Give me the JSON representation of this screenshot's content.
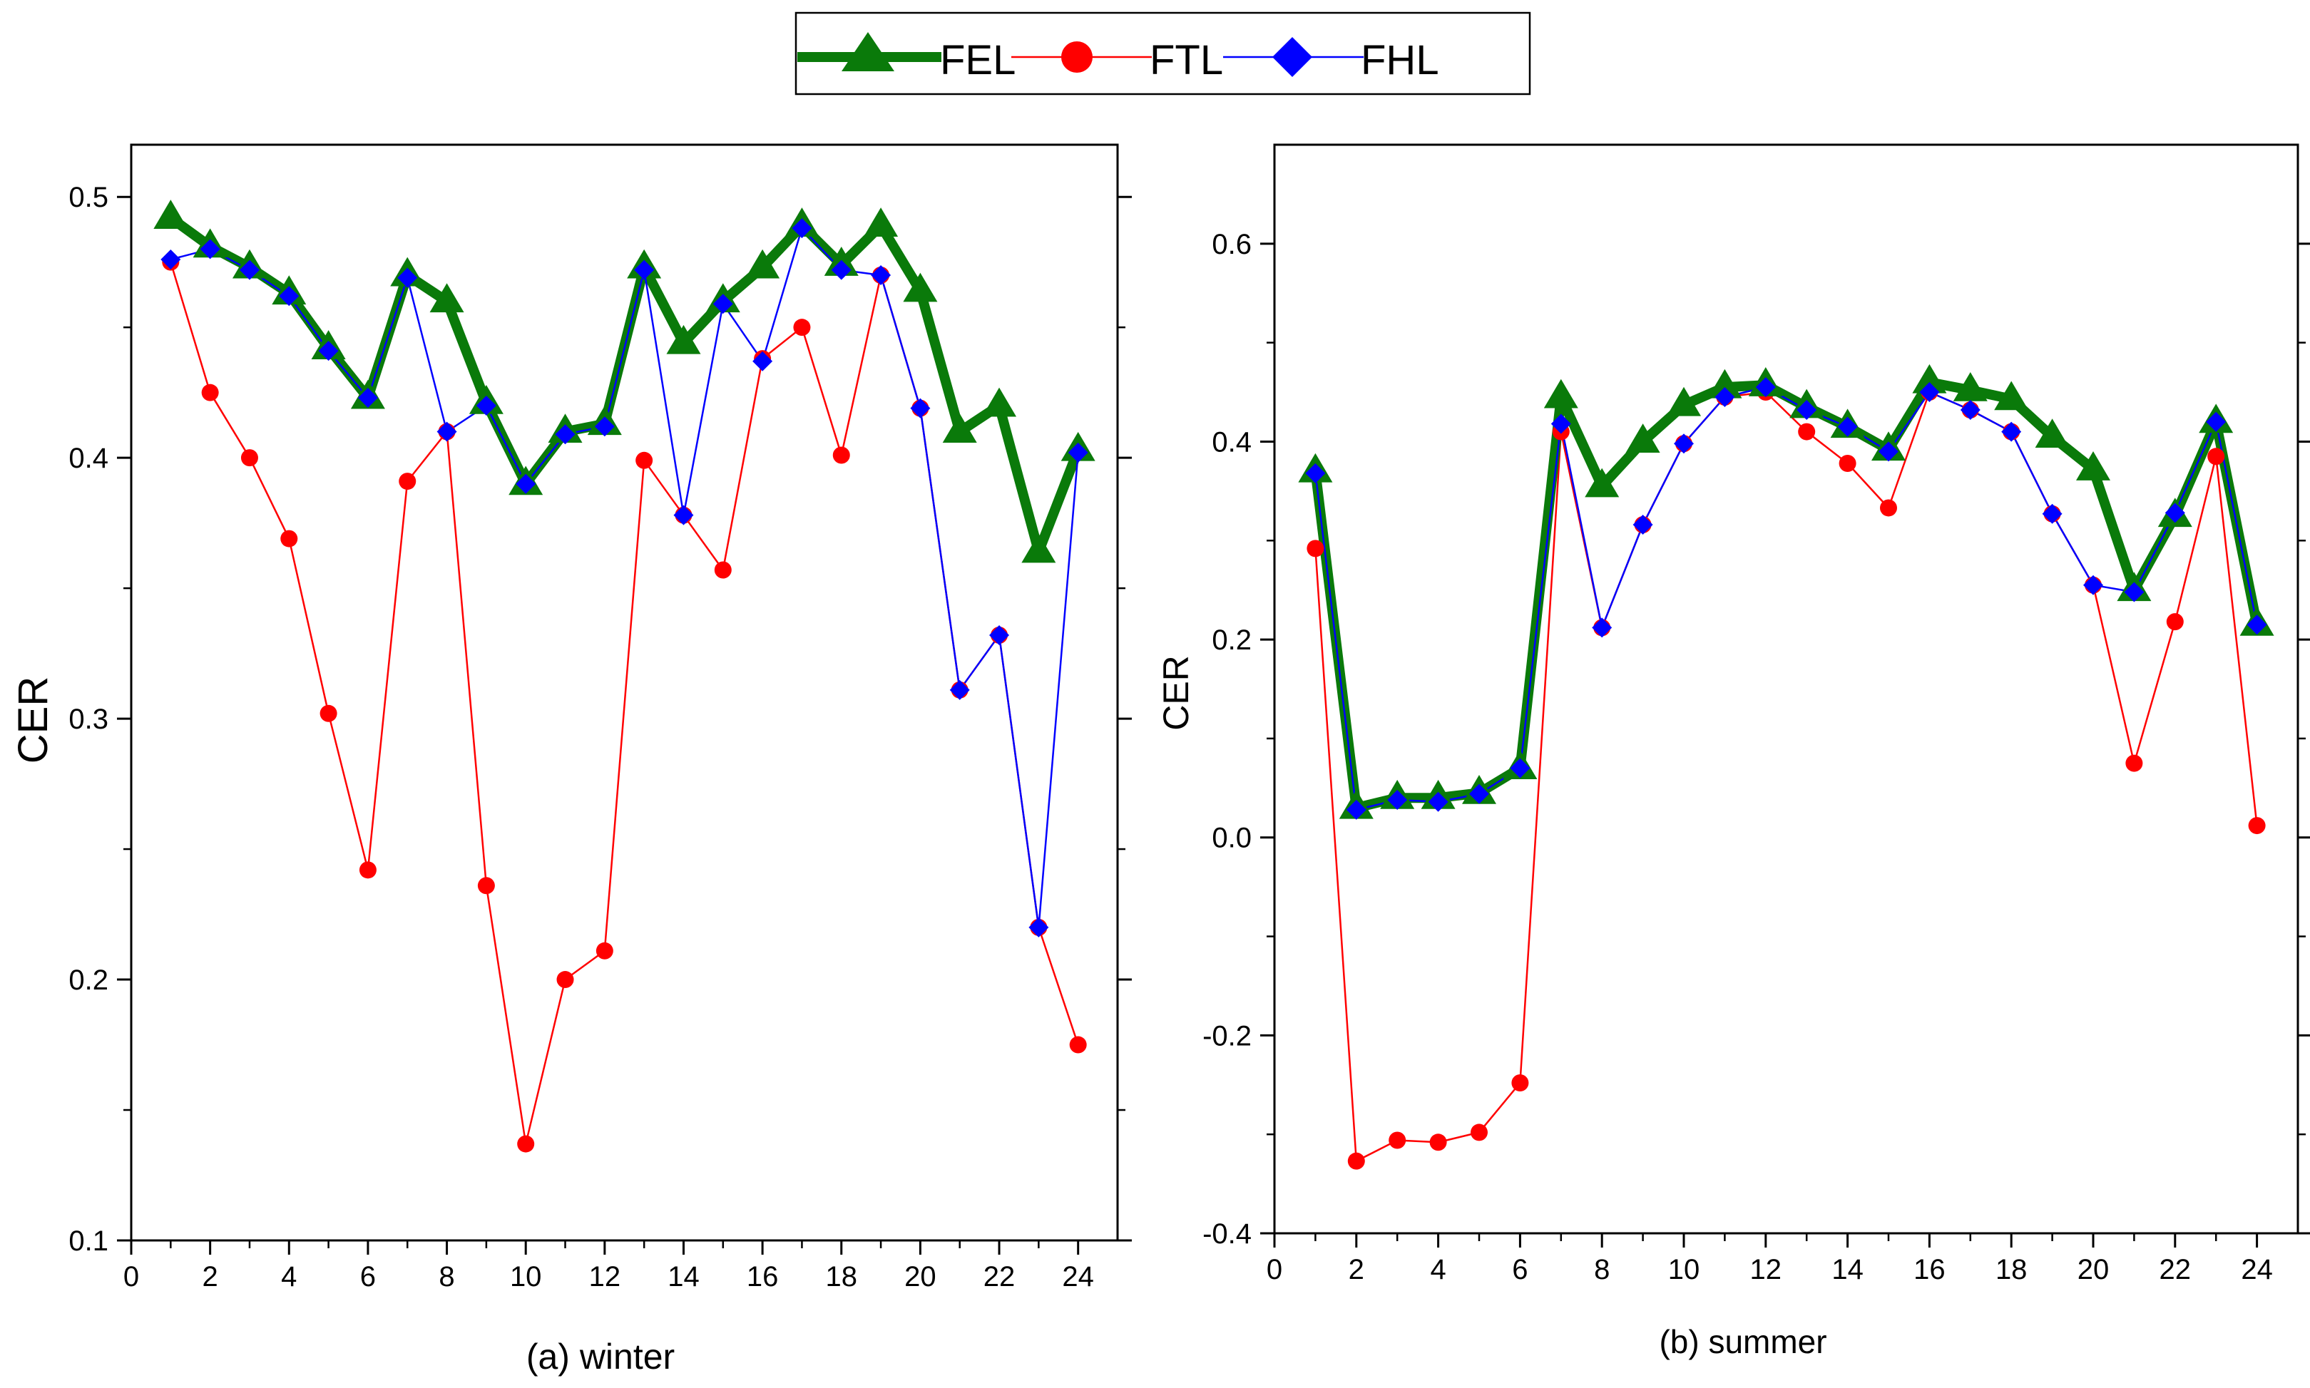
{
  "legend": {
    "entries": [
      {
        "name": "FEL",
        "color": "#0a7a0a",
        "marker": "triangle-icon"
      },
      {
        "name": "FTL",
        "color": "#ff0000",
        "marker": "circle-icon"
      },
      {
        "name": "FHL",
        "color": "#0000ff",
        "marker": "diamond-icon"
      }
    ],
    "placement": "top-center"
  },
  "chart_data": [
    {
      "type": "line",
      "title": "",
      "caption": "(a) winter",
      "xlabel": "",
      "ylabel": "CER",
      "xlim": [
        0,
        25
      ],
      "ylim": [
        0.1,
        0.52
      ],
      "xticks": [
        0,
        2,
        4,
        6,
        8,
        10,
        12,
        14,
        16,
        18,
        20,
        22,
        24
      ],
      "yticks": [
        0.1,
        0.2,
        0.3,
        0.4,
        0.5
      ],
      "ytick_labels": [
        "0.1",
        "0.2",
        "0.3",
        "0.4",
        "0.5"
      ],
      "x": [
        1,
        2,
        3,
        4,
        5,
        6,
        7,
        8,
        9,
        10,
        11,
        12,
        13,
        14,
        15,
        16,
        17,
        18,
        19,
        20,
        21,
        22,
        23,
        24
      ],
      "series": [
        {
          "name": "FEL",
          "values": [
            0.492,
            0.481,
            0.473,
            0.463,
            0.442,
            0.423,
            0.47,
            0.46,
            0.421,
            0.39,
            0.41,
            0.413,
            0.473,
            0.444,
            0.46,
            0.473,
            0.489,
            0.474,
            0.489,
            0.464,
            0.41,
            0.42,
            0.364,
            0.403
          ]
        },
        {
          "name": "FTL",
          "values": [
            0.475,
            0.425,
            0.4,
            0.369,
            0.302,
            0.242,
            0.391,
            0.41,
            0.236,
            0.137,
            0.2,
            0.211,
            0.399,
            0.378,
            0.357,
            0.438,
            0.45,
            0.401,
            0.47,
            0.419,
            0.311,
            0.332,
            0.22,
            0.175
          ]
        },
        {
          "name": "FHL",
          "values": [
            0.476,
            0.48,
            0.472,
            0.462,
            0.441,
            0.423,
            0.469,
            0.41,
            0.42,
            0.39,
            0.409,
            0.412,
            0.472,
            0.378,
            0.459,
            0.437,
            0.488,
            0.472,
            0.47,
            0.419,
            0.311,
            0.332,
            0.22,
            0.402
          ]
        }
      ]
    },
    {
      "type": "line",
      "title": "",
      "caption": "(b) summer",
      "xlabel": "",
      "ylabel": "CER",
      "xlim": [
        0,
        25
      ],
      "ylim": [
        -0.4,
        0.7
      ],
      "xticks": [
        0,
        2,
        4,
        6,
        8,
        10,
        12,
        14,
        16,
        18,
        20,
        22,
        24
      ],
      "yticks": [
        -0.4,
        -0.2,
        0.0,
        0.2,
        0.4,
        0.6
      ],
      "ytick_labels": [
        "-0.4",
        "-0.2",
        "0.0",
        "0.2",
        "0.4",
        "0.6"
      ],
      "x": [
        1,
        2,
        3,
        4,
        5,
        6,
        7,
        8,
        9,
        10,
        11,
        12,
        13,
        14,
        15,
        16,
        17,
        18,
        19,
        20,
        21,
        22,
        23,
        24
      ],
      "series": [
        {
          "name": "FEL",
          "values": [
            0.37,
            0.03,
            0.04,
            0.04,
            0.045,
            0.07,
            0.445,
            0.355,
            0.4,
            0.437,
            0.455,
            0.457,
            0.435,
            0.415,
            0.392,
            0.46,
            0.452,
            0.443,
            0.405,
            0.372,
            0.25,
            0.325,
            0.42,
            0.215
          ]
        },
        {
          "name": "FTL",
          "values": [
            0.292,
            -0.327,
            -0.306,
            -0.308,
            -0.298,
            -0.248,
            0.41,
            0.212,
            0.316,
            0.398,
            0.445,
            0.45,
            0.41,
            0.378,
            0.333,
            0.45,
            0.432,
            0.41,
            0.327,
            0.255,
            0.075,
            0.218,
            0.385,
            0.012
          ]
        },
        {
          "name": "FHL",
          "values": [
            0.368,
            0.028,
            0.038,
            0.036,
            0.044,
            0.07,
            0.418,
            0.212,
            0.316,
            0.398,
            0.445,
            0.455,
            0.432,
            0.415,
            0.39,
            0.45,
            0.432,
            0.41,
            0.327,
            0.255,
            0.248,
            0.328,
            0.42,
            0.215
          ]
        }
      ]
    }
  ]
}
